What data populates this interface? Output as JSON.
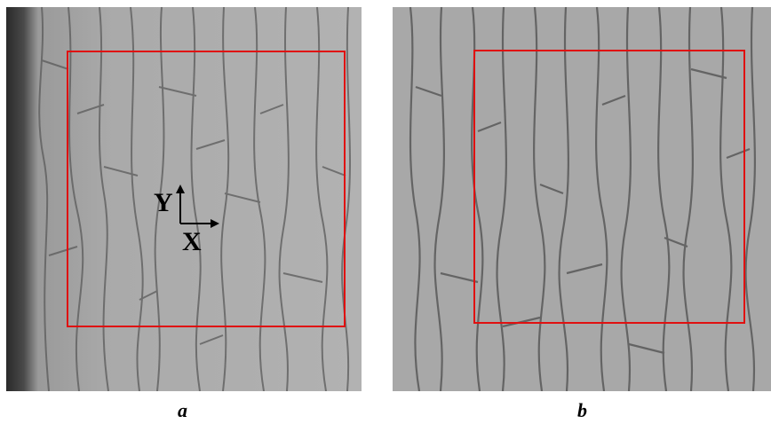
{
  "panels": [
    {
      "id": "a",
      "caption": "a"
    },
    {
      "id": "b",
      "caption": "b"
    }
  ],
  "axes_overlay": {
    "y_label": "Y",
    "x_label": "X"
  },
  "colors": {
    "roi": "#e01010",
    "background_gray": "#a9a9a9",
    "grain_boundary": "#555555"
  }
}
